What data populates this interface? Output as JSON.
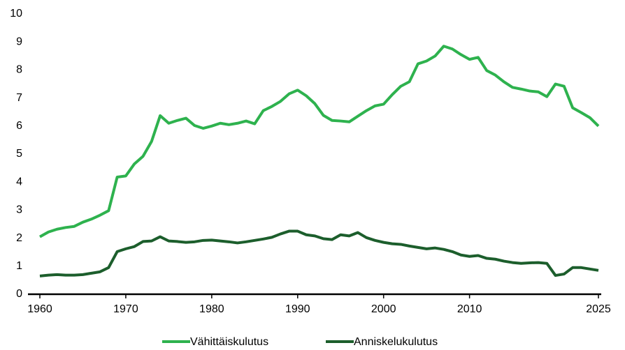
{
  "chart_data": {
    "type": "line",
    "x": [
      1960,
      1961,
      1962,
      1963,
      1964,
      1965,
      1966,
      1967,
      1968,
      1969,
      1970,
      1971,
      1972,
      1973,
      1974,
      1975,
      1976,
      1977,
      1978,
      1979,
      1980,
      1981,
      1982,
      1983,
      1984,
      1985,
      1986,
      1987,
      1988,
      1989,
      1990,
      1991,
      1992,
      1993,
      1994,
      1995,
      1996,
      1997,
      1998,
      1999,
      2000,
      2001,
      2002,
      2003,
      2004,
      2005,
      2006,
      2007,
      2008,
      2009,
      2010,
      2011,
      2012,
      2013,
      2014,
      2015,
      2016,
      2017,
      2018,
      2019,
      2020,
      2021,
      2022,
      2023,
      2024,
      2025
    ],
    "series": [
      {
        "name": "Vähittäiskulutus",
        "color": "#2eb24e",
        "values": [
          2.05,
          2.22,
          2.32,
          2.38,
          2.42,
          2.57,
          2.68,
          2.82,
          2.98,
          4.18,
          4.22,
          4.65,
          4.92,
          5.45,
          6.37,
          6.1,
          6.2,
          6.28,
          6.02,
          5.92,
          6.0,
          6.1,
          6.05,
          6.1,
          6.18,
          6.08,
          6.55,
          6.7,
          6.88,
          7.15,
          7.28,
          7.08,
          6.8,
          6.38,
          6.2,
          6.18,
          6.15,
          6.35,
          6.55,
          6.72,
          6.78,
          7.12,
          7.42,
          7.58,
          8.22,
          8.32,
          8.5,
          8.85,
          8.75,
          8.55,
          8.38,
          8.45,
          7.98,
          7.82,
          7.58,
          7.38,
          7.32,
          7.25,
          7.22,
          7.05,
          7.5,
          7.42,
          6.65,
          6.48,
          6.3,
          6.0
        ]
      },
      {
        "name": "Anniskelukulutus",
        "color": "#1c5e2c",
        "values": [
          0.65,
          0.68,
          0.7,
          0.68,
          0.68,
          0.7,
          0.75,
          0.8,
          0.95,
          1.52,
          1.62,
          1.7,
          1.88,
          1.9,
          2.05,
          1.9,
          1.88,
          1.85,
          1.87,
          1.92,
          1.93,
          1.9,
          1.87,
          1.83,
          1.87,
          1.92,
          1.97,
          2.03,
          2.15,
          2.25,
          2.25,
          2.12,
          2.08,
          1.98,
          1.95,
          2.12,
          2.08,
          2.2,
          2.02,
          1.92,
          1.85,
          1.8,
          1.78,
          1.72,
          1.67,
          1.62,
          1.65,
          1.6,
          1.52,
          1.4,
          1.35,
          1.38,
          1.28,
          1.25,
          1.18,
          1.13,
          1.1,
          1.12,
          1.13,
          1.1,
          0.67,
          0.72,
          0.95,
          0.95,
          0.9,
          0.85
        ]
      }
    ],
    "xlim": [
      1960,
      2025
    ],
    "xticks": [
      1960,
      1970,
      1980,
      1990,
      2000,
      2010,
      2025
    ],
    "ylim": [
      0,
      10
    ],
    "yticks": [
      0,
      1,
      2,
      3,
      4,
      5,
      6,
      7,
      8,
      9,
      10
    ],
    "grid": false,
    "legend": "bottom"
  }
}
